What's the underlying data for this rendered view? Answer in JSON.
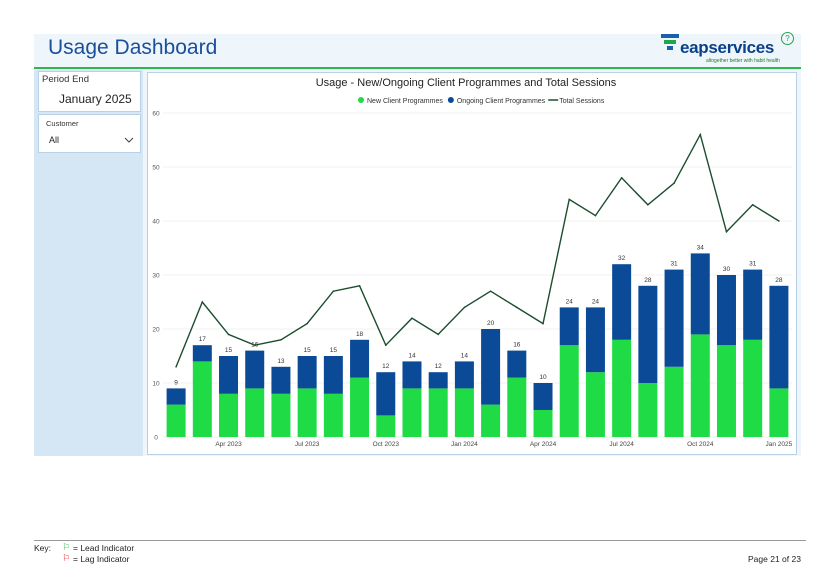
{
  "header": {
    "title": "Usage Dashboard",
    "logo_text": "eapservices",
    "logo_tagline": "altogether better with habit health",
    "help_glyph": "?"
  },
  "filters": {
    "period_end_label": "Period End",
    "period_end_value": "January 2025",
    "customer_label": "Customer",
    "customer_value": "All"
  },
  "colors": {
    "new": "#1fdb45",
    "ongoing": "#0b4a97",
    "total": "#1b4d2e",
    "accent": "#2db84b"
  },
  "chart_data": {
    "type": "bar",
    "title": "Usage - New/Ongoing Client Programmes and Total Sessions",
    "stacked": true,
    "legend": [
      "New Client Programmes",
      "Ongoing Client Programmes",
      "Total Sessions"
    ],
    "legend_position": "top-center",
    "ylim": [
      0,
      60
    ],
    "yticks": [
      0,
      10,
      20,
      30,
      40,
      50,
      60
    ],
    "x_tick_labels": [
      "Apr 2023",
      "Jul 2023",
      "Oct 2023",
      "Jan 2024",
      "Apr 2024",
      "Jul 2024",
      "Oct 2024",
      "Jan 2025"
    ],
    "x_tick_indices": [
      2,
      5,
      8,
      11,
      14,
      17,
      20,
      23
    ],
    "totals_labels": [
      9,
      17,
      15,
      16,
      13,
      15,
      15,
      18,
      12,
      14,
      12,
      14,
      20,
      16,
      10,
      24,
      24,
      32,
      28,
      31,
      34,
      30,
      31,
      28
    ],
    "series": [
      {
        "name": "New Client Programmes",
        "values": [
          6,
          14,
          8,
          9,
          8,
          9,
          8,
          11,
          4,
          9,
          9,
          9,
          6,
          11,
          5,
          17,
          12,
          18,
          10,
          13,
          19,
          17,
          18,
          9
        ]
      },
      {
        "name": "Ongoing Client Programmes",
        "values": [
          3,
          3,
          7,
          7,
          5,
          6,
          7,
          7,
          8,
          5,
          3,
          5,
          14,
          5,
          5,
          7,
          12,
          14,
          18,
          18,
          15,
          13,
          13,
          19
        ]
      },
      {
        "name": "Total Sessions",
        "type": "line",
        "values": [
          13,
          25,
          19,
          17,
          18,
          21,
          27,
          28,
          17,
          22,
          19,
          24,
          27,
          24,
          21,
          44,
          41,
          48,
          43,
          47,
          56,
          38,
          43,
          40
        ]
      }
    ]
  },
  "footer": {
    "key_label": "Key:",
    "lead_text": "= Lead Indicator",
    "lag_text": "= Lag Indicator",
    "page_text": "Page 21 of 23"
  }
}
